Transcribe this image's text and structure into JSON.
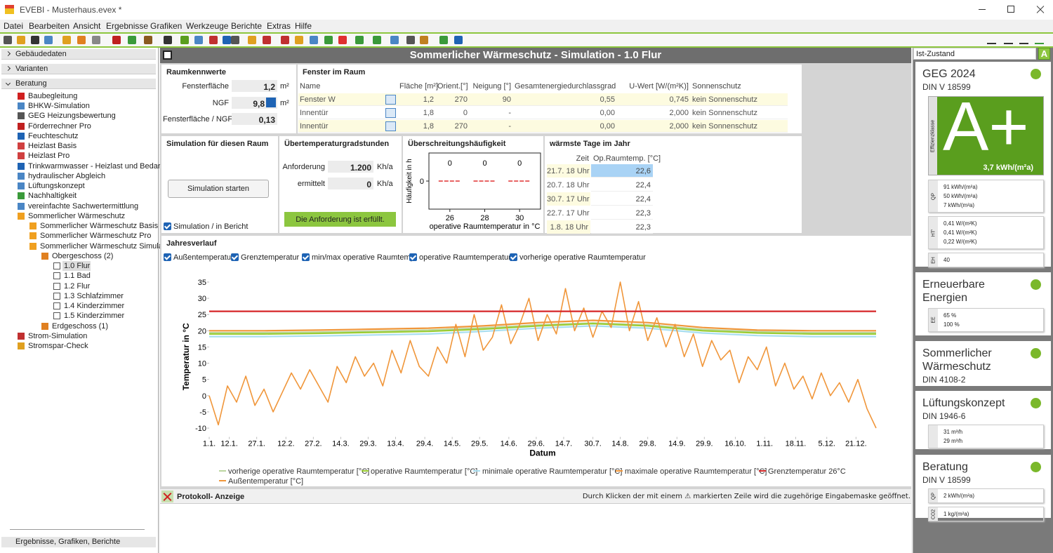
{
  "window": {
    "title": "EVEBI - Musterhaus.evex *"
  },
  "menu": [
    "Datei",
    "Bearbeiten",
    "Ansicht",
    "Ergebnisse",
    "Grafiken",
    "Werkzeuge",
    "Berichte",
    "Extras",
    "Hilfe"
  ],
  "sidebar": {
    "sections": [
      "Gebäudedaten",
      "Varianten",
      "Beratung"
    ],
    "tree": [
      "Baubegleitung",
      "BHKW-Simulation",
      "GEG Heizungsbewertung",
      "Förderrechner Pro",
      "Feuchteschutz",
      "Heizlast Basis",
      "Heizlast Pro",
      "Trinkwarmwasser - Heizlast und Bedarf",
      "hydraulischer Abgleich",
      "Lüftungskonzept",
      "Nachhaltigkeit",
      "vereinfachte Sachwertermittlung",
      "Sommerlicher Wärmeschutz",
      "Sommerlicher Wärmeschutz Basis",
      "Sommerlicher Wärmeschutz Pro",
      "Sommerlicher Wärmeschutz Simulation",
      "Obergeschoss (2)",
      "1.0 Flur",
      "1.1 Bad",
      "1.2 Flur",
      "1.3 Schlafzimmer",
      "1.4 Kinderzimmer",
      "1.5 Kinderzimmer",
      "Erdgeschoss (1)",
      "Strom-Simulation",
      "Stromspar-Check"
    ],
    "footer": "Ergebnisse, Grafiken, Berichte"
  },
  "header": {
    "title": "Sommerlicher Wärmeschutz - Simulation - 1.0 Flur"
  },
  "raumkennwerte": {
    "title": "Raumkennwerte",
    "rows": [
      {
        "label": "Fensterfläche",
        "value": "1,2",
        "unit": "m²"
      },
      {
        "label": "NGF",
        "value": "9,8",
        "unit": "m²"
      },
      {
        "label": "Fensterfläche / NGF",
        "value": "0,13"
      }
    ]
  },
  "fenster": {
    "title": "Fenster im Raum",
    "columns": [
      "Name",
      "Fläche [m²]",
      "Orient.[°]",
      "Neigung [°]",
      "Gesamtenergiedurchlassgrad",
      "U-Wert [W/(m²K)]",
      "Sonnenschutz"
    ],
    "rows": [
      [
        "Fenster W",
        "1,2",
        "270",
        "90",
        "0,55",
        "0,745",
        "kein Sonnenschutz"
      ],
      [
        "Innentür",
        "1,8",
        "0",
        "-",
        "0,00",
        "2,000",
        "kein Sonnenschutz"
      ],
      [
        "Innentür",
        "1,8",
        "270",
        "-",
        "0,00",
        "2,000",
        "kein Sonnenschutz"
      ]
    ]
  },
  "simulation": {
    "title": "Simulation für diesen Raum",
    "button": "Simulation starten",
    "checkbox": "Simulation / in Bericht"
  },
  "uebertemperatur": {
    "title": "Übertemperaturgradstunden",
    "rows": [
      {
        "label": "Anforderung",
        "value": "1.200",
        "unit": "Kh/a"
      },
      {
        "label": "ermittelt",
        "value": "0",
        "unit": "Kh/a"
      }
    ],
    "status": "Die Anforderung ist erfüllt."
  },
  "waermste_tage": {
    "title": "wärmste Tage im Jahr",
    "columns": [
      "Zeit",
      "Op.Raumtemp. [°C]"
    ],
    "rows": [
      [
        "21.7. 18 Uhr",
        "22,6"
      ],
      [
        "20.7. 18 Uhr",
        "22,4"
      ],
      [
        "30.7. 17 Uhr",
        "22,4"
      ],
      [
        "22.7. 17 Uhr",
        "22,3"
      ],
      [
        "1.8. 18 Uhr",
        "22,3"
      ]
    ]
  },
  "jahresverlauf": {
    "title": "Jahresverlauf",
    "toggles": [
      "Außentemperatur",
      "Grenztemperatur",
      "min/max operative Raumtemp.",
      "operative Raumtemperatur",
      "vorherige operative Raumtemperatur"
    ]
  },
  "chart_data": [
    {
      "type": "bar",
      "title": "Überschreitungshäufigkeit",
      "x": [
        26,
        28,
        30
      ],
      "values": [
        0,
        0,
        0
      ],
      "color": "#e03030",
      "xlim": [
        24.8,
        31.2
      ],
      "xticks": [
        26,
        28,
        30
      ],
      "ylim": [
        -1,
        1
      ],
      "yticks": [
        0
      ],
      "x_label": "operative Raumtemperatur in °C",
      "y_label": "Häufigkeit in h"
    },
    {
      "type": "line",
      "x_label": "Datum",
      "y_label": "Temperatur in °C",
      "grid": false,
      "xlim": [
        0,
        365
      ],
      "xticks": [
        {
          "value": 0,
          "label": "1.1."
        },
        {
          "value": 11,
          "label": "12.1."
        },
        {
          "value": 26,
          "label": "27.1."
        },
        {
          "value": 42,
          "label": "12.2."
        },
        {
          "value": 57,
          "label": "27.2."
        },
        {
          "value": 72,
          "label": "14.3."
        },
        {
          "value": 87,
          "label": "29.3."
        },
        {
          "value": 102,
          "label": "13.4."
        },
        {
          "value": 118,
          "label": "29.4."
        },
        {
          "value": 133,
          "label": "14.5."
        },
        {
          "value": 148,
          "label": "29.5."
        },
        {
          "value": 164,
          "label": "14.6."
        },
        {
          "value": 179,
          "label": "29.6."
        },
        {
          "value": 194,
          "label": "14.7."
        },
        {
          "value": 210,
          "label": "30.7."
        },
        {
          "value": 225,
          "label": "14.8."
        },
        {
          "value": 240,
          "label": "29.8."
        },
        {
          "value": 256,
          "label": "14.9."
        },
        {
          "value": 271,
          "label": "29.9."
        },
        {
          "value": 288,
          "label": "16.10."
        },
        {
          "value": 304,
          "label": "1.11."
        },
        {
          "value": 321,
          "label": "18.11."
        },
        {
          "value": 338,
          "label": "5.12."
        },
        {
          "value": 354,
          "label": "21.12."
        }
      ],
      "ylim": [
        -12.5,
        36.5
      ],
      "yticks": [
        -10,
        -5,
        0,
        5,
        10,
        15,
        20,
        25,
        30,
        35
      ],
      "series": [
        {
          "name": "vorherige operative Raumtemperatur [°C]",
          "color": "#bcd6a0",
          "x": [
            0,
            30,
            60,
            90,
            120,
            150,
            180,
            210,
            240,
            270,
            300,
            330,
            365
          ],
          "values": [
            19.4,
            19.4,
            19.6,
            19.9,
            20.2,
            20.9,
            21.8,
            22.4,
            21.8,
            20.4,
            19.7,
            19.4,
            19.4
          ]
        },
        {
          "name": "operative Raumtemperatur [°C]",
          "color": "#9acd32",
          "x": [
            0,
            30,
            60,
            90,
            120,
            150,
            180,
            210,
            240,
            270,
            300,
            330,
            365
          ],
          "values": [
            19,
            19,
            19.2,
            19.5,
            19.8,
            20.5,
            21.5,
            22.2,
            21.5,
            20,
            19.3,
            19,
            19
          ]
        },
        {
          "name": "minimale operative Raumtemperatur [°C]",
          "color": "#a8def0",
          "x": [
            0,
            30,
            60,
            90,
            120,
            150,
            180,
            210,
            240,
            270,
            300,
            330,
            365
          ],
          "values": [
            18.2,
            18.2,
            18.4,
            18.7,
            19,
            19.8,
            20.8,
            21.5,
            20.8,
            19.3,
            18.5,
            18.2,
            18.2
          ]
        },
        {
          "name": "maximale operative Raumtemperatur [°C]",
          "color": "#f0963a",
          "x": [
            0,
            30,
            60,
            90,
            120,
            150,
            180,
            210,
            240,
            270,
            300,
            330,
            365
          ],
          "values": [
            20,
            20,
            20.2,
            20.5,
            20.8,
            21.5,
            22.5,
            23.2,
            22.5,
            21,
            20.2,
            20,
            20
          ]
        },
        {
          "name": "Grenztemperatur 26°C",
          "color": "#d62728",
          "x": [
            0,
            365
          ],
          "values": [
            26,
            26
          ]
        },
        {
          "name": "Außentemperatur [°C]",
          "color": "#f0963a",
          "x": [
            0,
            5,
            10,
            15,
            20,
            25,
            30,
            35,
            40,
            45,
            50,
            55,
            60,
            65,
            70,
            75,
            80,
            85,
            90,
            95,
            100,
            105,
            110,
            115,
            120,
            125,
            130,
            135,
            140,
            145,
            150,
            155,
            160,
            165,
            170,
            175,
            180,
            185,
            190,
            195,
            200,
            205,
            210,
            215,
            220,
            225,
            230,
            235,
            240,
            245,
            250,
            255,
            260,
            265,
            270,
            275,
            280,
            285,
            290,
            295,
            300,
            305,
            310,
            315,
            320,
            325,
            330,
            335,
            340,
            345,
            350,
            355,
            360,
            365
          ],
          "values": [
            0,
            -9,
            3,
            -2,
            6,
            -3,
            2,
            -5,
            1,
            7,
            2,
            8,
            3,
            -2,
            9,
            4,
            12,
            6,
            10,
            3,
            14,
            7,
            17,
            9,
            6,
            15,
            10,
            22,
            12,
            25,
            14,
            18,
            28,
            16,
            22,
            30,
            17,
            25,
            19,
            33,
            20,
            27,
            18,
            26,
            21,
            35,
            20,
            29,
            17,
            24,
            15,
            22,
            12,
            19,
            9,
            17,
            11,
            14,
            4,
            12,
            8,
            15,
            3,
            10,
            2,
            6,
            -1,
            7,
            0,
            4,
            -2,
            5,
            -4,
            -10
          ]
        }
      ]
    }
  ],
  "protokoll": {
    "title": "Protokoll- Anzeige",
    "hint": "Durch Klicken der mit einem ⚠ markierten Zeile wird die zugehörige Eingabemaske geöffnet."
  },
  "right_panel": {
    "state": "Ist-Zustand",
    "badge": "A",
    "cards": [
      {
        "title": "GEG 2024",
        "subtitle": "DIN V 18599",
        "class_label": "Effizienzklasse",
        "class": "A+",
        "class_value": "3,7 kWh/(m²a)",
        "groups": [
          {
            "label": "QP",
            "bars": [
              "91 kWh/(m²a)",
              "50 kWh/(m²a)",
              "7 kWh/(m²a)"
            ]
          },
          {
            "label": "HT'",
            "bars": [
              "0,41 W/(m²K)",
              "0,41 W/(m²K)",
              "0,22 W/(m²K)"
            ]
          },
          {
            "label": "EH",
            "bars": [
              "40"
            ]
          }
        ]
      },
      {
        "title": "Erneuerbare Energien",
        "groups": [
          {
            "label": "EE",
            "bars": [
              "65 %",
              "100 %"
            ]
          }
        ]
      },
      {
        "title": "Sommerlicher Wärmeschutz",
        "subtitle": "DIN 4108-2"
      },
      {
        "title": "Lüftungskonzept",
        "subtitle": "DIN 1946-6",
        "groups": [
          {
            "bars": [
              "31 m³/h",
              "29 m³/h"
            ]
          }
        ]
      },
      {
        "title": "Beratung",
        "subtitle": "DIN V 18599",
        "groups": [
          {
            "label": "QP",
            "bars": [
              "2 kWh/(m²a)"
            ]
          },
          {
            "label": "CO2",
            "bars": [
              "1 kg/(m²a)"
            ]
          }
        ]
      }
    ]
  }
}
